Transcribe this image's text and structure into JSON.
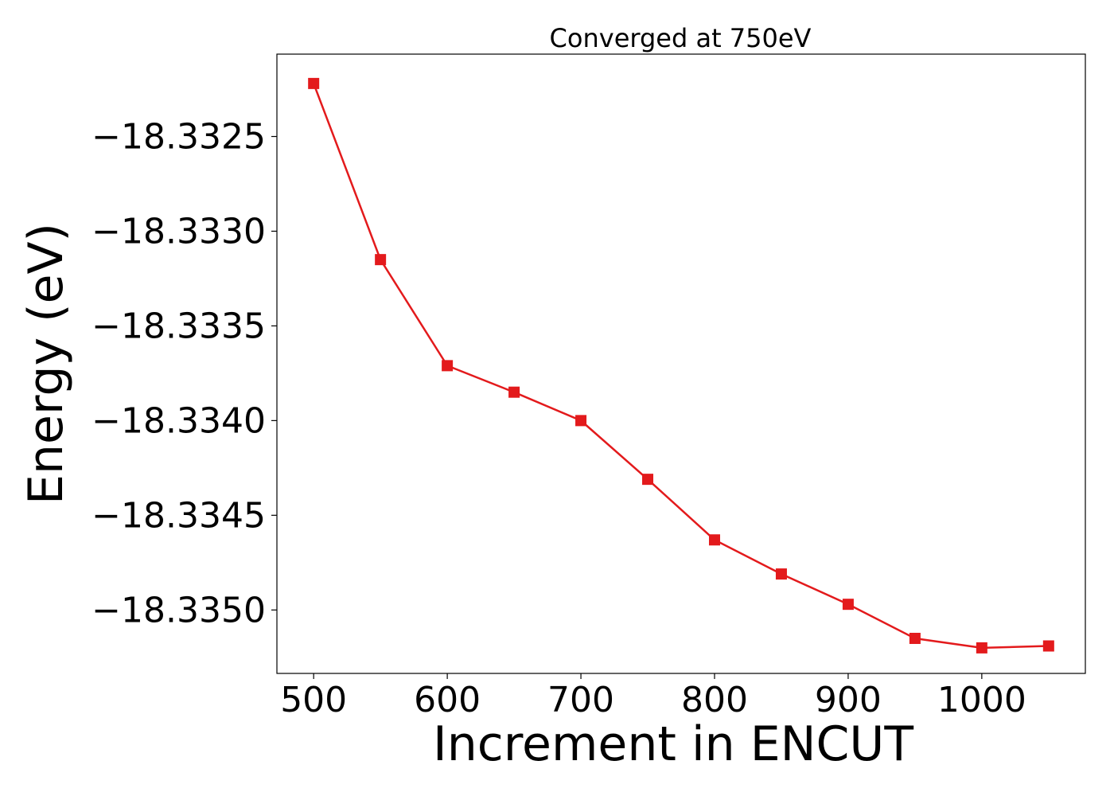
{
  "chart_data": {
    "type": "line",
    "title": "Converged at 750eV",
    "xlabel": "Increment in ENCUT",
    "ylabel": "Energy (eV)",
    "x": [
      500,
      550,
      600,
      650,
      700,
      750,
      800,
      850,
      900,
      950,
      1000,
      1050
    ],
    "series": [
      {
        "values": [
          -18.33222,
          -18.33315,
          -18.33371,
          -18.33385,
          -18.334,
          -18.33431,
          -18.33463,
          -18.33481,
          -18.33497,
          -18.33515,
          -18.3352,
          -18.33519
        ],
        "color": "#e31a1c",
        "marker": "square"
      }
    ],
    "xticks": [
      500,
      600,
      700,
      800,
      900,
      1000
    ],
    "xtick_labels": [
      "500",
      "600",
      "700",
      "800",
      "900",
      "1000"
    ],
    "yticks": [
      -18.3325,
      -18.333,
      -18.3335,
      -18.334,
      -18.3345,
      -18.335
    ],
    "ytick_labels": [
      "−18.3325",
      "−18.3330",
      "−18.3335",
      "−18.3340",
      "−18.3345",
      "−18.3350"
    ],
    "xlim": [
      472.5,
      1077.5
    ],
    "ylim": [
      -18.335335,
      -18.332065
    ],
    "grid": false,
    "legend": false
  }
}
